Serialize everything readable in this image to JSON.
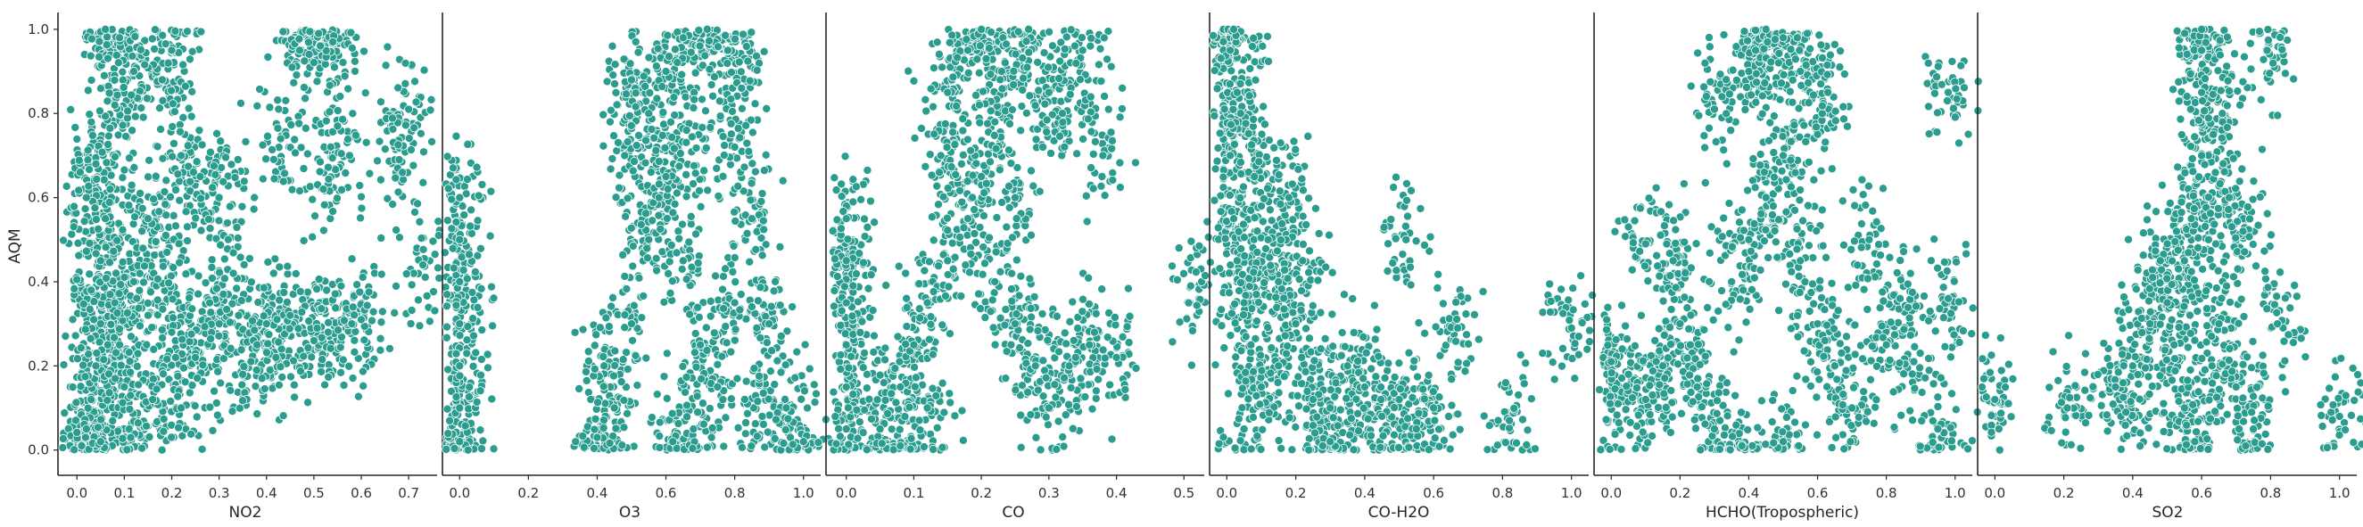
{
  "figure": {
    "point_color": "#2a9d8f",
    "point_edge": "#ffffff",
    "background": "#ffffff"
  },
  "chart_data": [
    {
      "type": "scatter",
      "xlabel": "NO2",
      "ylabel": "AQM",
      "xlim": [
        -0.04,
        0.76
      ],
      "ylim": [
        -0.06,
        1.04
      ],
      "xticks": [
        "0.0",
        "0.1",
        "0.2",
        "0.3",
        "0.4",
        "0.5",
        "0.6",
        "0.7"
      ],
      "yticks": [
        "0.0",
        "0.2",
        "0.4",
        "0.6",
        "0.8",
        "1.0"
      ],
      "points": [
        [
          0.02,
          0.05
        ],
        [
          0.03,
          0.12
        ],
        [
          0.04,
          0.2
        ],
        [
          0.05,
          0.3
        ],
        [
          0.05,
          0.45
        ],
        [
          0.06,
          0.55
        ],
        [
          0.07,
          0.62
        ],
        [
          0.08,
          0.35
        ],
        [
          0.09,
          0.25
        ],
        [
          0.1,
          0.15
        ],
        [
          0.12,
          0.4
        ],
        [
          0.15,
          0.32
        ],
        [
          0.2,
          0.28
        ],
        [
          0.25,
          0.22
        ],
        [
          0.3,
          0.3
        ],
        [
          0.35,
          0.18
        ],
        [
          0.4,
          0.3
        ],
        [
          0.45,
          0.32
        ],
        [
          0.5,
          0.26
        ],
        [
          0.53,
          0.28
        ],
        [
          0.58,
          0.3
        ],
        [
          0.6,
          0.31
        ],
        [
          0.7,
          0.81
        ],
        [
          0.68,
          0.69
        ],
        [
          0.73,
          0.44
        ],
        [
          0.47,
          0.95
        ],
        [
          0.51,
          0.99
        ],
        [
          0.54,
          0.97
        ],
        [
          0.09,
          0.98
        ],
        [
          0.06,
          1.0
        ],
        [
          0.2,
          0.95
        ],
        [
          0.43,
          0.74
        ],
        [
          0.55,
          0.77
        ],
        [
          0.52,
          0.62
        ],
        [
          0.3,
          0.6
        ],
        [
          0.22,
          0.7
        ],
        [
          0.18,
          0.88
        ],
        [
          0.12,
          0.9
        ],
        [
          0.08,
          0.82
        ],
        [
          0.04,
          0.68
        ],
        [
          0.02,
          0.6
        ],
        [
          0.03,
          0.38
        ],
        [
          0.15,
          0.55
        ],
        [
          0.26,
          0.65
        ],
        [
          0.33,
          0.42
        ],
        [
          0.38,
          0.25
        ],
        [
          0.42,
          0.22
        ],
        [
          0.11,
          0.05
        ],
        [
          0.05,
          0.02
        ],
        [
          0.01,
          0.01
        ],
        [
          0.16,
          0.12
        ],
        [
          0.22,
          0.1
        ],
        [
          0.28,
          0.35
        ],
        [
          0.19,
          0.47
        ]
      ]
    },
    {
      "type": "scatter",
      "xlabel": "O3",
      "ylabel": "",
      "xlim": [
        -0.05,
        1.05
      ],
      "ylim": [
        -0.06,
        1.04
      ],
      "xticks": [
        "0.0",
        "0.2",
        "0.4",
        "0.6",
        "0.8",
        "1.0"
      ],
      "points": [
        [
          0.0,
          0.02
        ],
        [
          0.0,
          0.1
        ],
        [
          0.0,
          0.2
        ],
        [
          0.0,
          0.3
        ],
        [
          0.0,
          0.4
        ],
        [
          0.0,
          0.5
        ],
        [
          0.0,
          0.6
        ],
        [
          0.45,
          0.1
        ],
        [
          0.5,
          0.3
        ],
        [
          0.55,
          0.5
        ],
        [
          0.6,
          0.65
        ],
        [
          0.65,
          0.45
        ],
        [
          0.7,
          0.25
        ],
        [
          0.75,
          0.15
        ],
        [
          0.8,
          0.35
        ],
        [
          0.85,
          0.55
        ],
        [
          0.9,
          0.3
        ],
        [
          0.95,
          0.1
        ],
        [
          0.48,
          0.7
        ],
        [
          0.55,
          0.8
        ],
        [
          0.6,
          0.9
        ],
        [
          0.65,
          0.98
        ],
        [
          0.72,
          1.0
        ],
        [
          0.78,
          0.95
        ],
        [
          0.82,
          0.86
        ],
        [
          0.58,
          0.6
        ],
        [
          0.62,
          0.02
        ],
        [
          0.68,
          0.05
        ],
        [
          0.42,
          0.2
        ],
        [
          0.88,
          0.08
        ],
        [
          1.0,
          0.02
        ],
        [
          0.4,
          0.03
        ],
        [
          0.5,
          0.88
        ],
        [
          0.8,
          0.72
        ],
        [
          0.66,
          0.76
        ]
      ]
    },
    {
      "type": "scatter",
      "xlabel": "CO",
      "ylabel": "",
      "xlim": [
        -0.03,
        0.53
      ],
      "ylim": [
        -0.06,
        1.04
      ],
      "xticks": [
        "0.0",
        "0.1",
        "0.2",
        "0.3",
        "0.4",
        "0.5"
      ],
      "points": [
        [
          0.0,
          0.05
        ],
        [
          0.0,
          0.15
        ],
        [
          0.0,
          0.25
        ],
        [
          0.0,
          0.35
        ],
        [
          0.0,
          0.45
        ],
        [
          0.0,
          0.55
        ],
        [
          0.05,
          0.05
        ],
        [
          0.08,
          0.15
        ],
        [
          0.1,
          0.25
        ],
        [
          0.12,
          0.35
        ],
        [
          0.15,
          0.45
        ],
        [
          0.18,
          0.55
        ],
        [
          0.2,
          0.65
        ],
        [
          0.22,
          0.4
        ],
        [
          0.25,
          0.3
        ],
        [
          0.28,
          0.2
        ],
        [
          0.3,
          0.1
        ],
        [
          0.15,
          0.85
        ],
        [
          0.18,
          0.95
        ],
        [
          0.2,
          1.0
        ],
        [
          0.23,
          0.9
        ],
        [
          0.27,
          1.0
        ],
        [
          0.3,
          0.85
        ],
        [
          0.32,
          0.8
        ],
        [
          0.35,
          0.95
        ],
        [
          0.38,
          0.7
        ],
        [
          0.4,
          0.22
        ],
        [
          0.36,
          0.25
        ],
        [
          0.33,
          0.2
        ],
        [
          0.51,
          0.39
        ],
        [
          0.25,
          0.6
        ],
        [
          0.12,
          0.1
        ],
        [
          0.08,
          0.01
        ],
        [
          0.14,
          0.7
        ],
        [
          0.22,
          0.78
        ]
      ]
    },
    {
      "type": "scatter",
      "xlabel": "CO-H2O",
      "ylabel": "",
      "xlim": [
        -0.05,
        1.05
      ],
      "ylim": [
        -0.06,
        1.04
      ],
      "xticks": [
        "0.0",
        "0.2",
        "0.4",
        "0.6",
        "0.8",
        "1.0"
      ],
      "points": [
        [
          0.01,
          0.95
        ],
        [
          0.02,
          1.0
        ],
        [
          0.03,
          0.85
        ],
        [
          0.01,
          0.7
        ],
        [
          0.02,
          0.55
        ],
        [
          0.03,
          0.45
        ],
        [
          0.05,
          0.35
        ],
        [
          0.07,
          0.25
        ],
        [
          0.1,
          0.15
        ],
        [
          0.15,
          0.2
        ],
        [
          0.2,
          0.3
        ],
        [
          0.25,
          0.12
        ],
        [
          0.3,
          0.1
        ],
        [
          0.35,
          0.2
        ],
        [
          0.4,
          0.15
        ],
        [
          0.45,
          0.08
        ],
        [
          0.5,
          0.12
        ],
        [
          0.55,
          0.05
        ],
        [
          0.6,
          0.1
        ],
        [
          0.52,
          0.5
        ],
        [
          0.67,
          0.29
        ],
        [
          0.82,
          0.07
        ],
        [
          1.0,
          0.29
        ],
        [
          0.18,
          0.6
        ],
        [
          0.12,
          0.5
        ],
        [
          0.08,
          0.65
        ],
        [
          0.05,
          0.05
        ],
        [
          0.15,
          0.4
        ],
        [
          0.22,
          0.45
        ],
        [
          0.3,
          0.02
        ],
        [
          0.04,
          0.8
        ]
      ]
    },
    {
      "type": "scatter",
      "xlabel": "HCHO(Tropospheric)",
      "ylabel": "",
      "xlim": [
        -0.05,
        1.05
      ],
      "ylim": [
        -0.06,
        1.04
      ],
      "xticks": [
        "0.0",
        "0.2",
        "0.4",
        "0.6",
        "0.8",
        "1.0"
      ],
      "points": [
        [
          0.0,
          0.21
        ],
        [
          0.02,
          0.11
        ],
        [
          0.05,
          0.18
        ],
        [
          0.1,
          0.12
        ],
        [
          0.15,
          0.2
        ],
        [
          0.2,
          0.3
        ],
        [
          0.25,
          0.15
        ],
        [
          0.3,
          0.05
        ],
        [
          0.35,
          0.4
        ],
        [
          0.4,
          0.5
        ],
        [
          0.45,
          0.6
        ],
        [
          0.5,
          0.7
        ],
        [
          0.55,
          0.45
        ],
        [
          0.6,
          0.3
        ],
        [
          0.65,
          0.2
        ],
        [
          0.7,
          0.1
        ],
        [
          0.75,
          0.5
        ],
        [
          0.8,
          0.25
        ],
        [
          0.4,
          0.9
        ],
        [
          0.42,
          0.95
        ],
        [
          0.45,
          1.0
        ],
        [
          0.5,
          0.98
        ],
        [
          0.55,
          0.9
        ],
        [
          0.6,
          0.75
        ],
        [
          0.63,
          0.85
        ],
        [
          0.3,
          0.81
        ],
        [
          0.98,
          0.85
        ],
        [
          0.98,
          0.36
        ],
        [
          0.95,
          0.05
        ],
        [
          0.88,
          0.21
        ],
        [
          0.84,
          0.36
        ],
        [
          0.18,
          0.45
        ],
        [
          0.1,
          0.49
        ],
        [
          0.5,
          0.02
        ],
        [
          0.38,
          0.01
        ]
      ]
    },
    {
      "type": "scatter",
      "xlabel": "SO2",
      "ylabel": "",
      "xlim": [
        -0.05,
        1.05
      ],
      "ylim": [
        -0.06,
        1.04
      ],
      "xticks": [
        "0.0",
        "0.2",
        "0.4",
        "0.6",
        "0.8",
        "1.0"
      ],
      "points": [
        [
          0.0,
          0.12
        ],
        [
          0.21,
          0.1
        ],
        [
          0.35,
          0.15
        ],
        [
          0.38,
          0.09
        ],
        [
          0.4,
          0.2
        ],
        [
          0.45,
          0.3
        ],
        [
          0.5,
          0.35
        ],
        [
          0.55,
          0.45
        ],
        [
          0.57,
          0.55
        ],
        [
          0.6,
          0.7
        ],
        [
          0.6,
          0.85
        ],
        [
          0.6,
          0.95
        ],
        [
          0.6,
          1.0
        ],
        [
          0.62,
          0.5
        ],
        [
          0.65,
          0.3
        ],
        [
          0.7,
          0.15
        ],
        [
          0.75,
          0.05
        ],
        [
          0.79,
          0.95
        ],
        [
          0.82,
          0.3
        ],
        [
          1.0,
          0.08
        ],
        [
          0.72,
          0.52
        ],
        [
          0.48,
          0.45
        ],
        [
          0.58,
          0.02
        ],
        [
          0.63,
          0.2
        ],
        [
          0.55,
          0.1
        ],
        [
          0.52,
          0.25
        ],
        [
          0.68,
          0.6
        ],
        [
          0.66,
          0.8
        ]
      ]
    }
  ]
}
